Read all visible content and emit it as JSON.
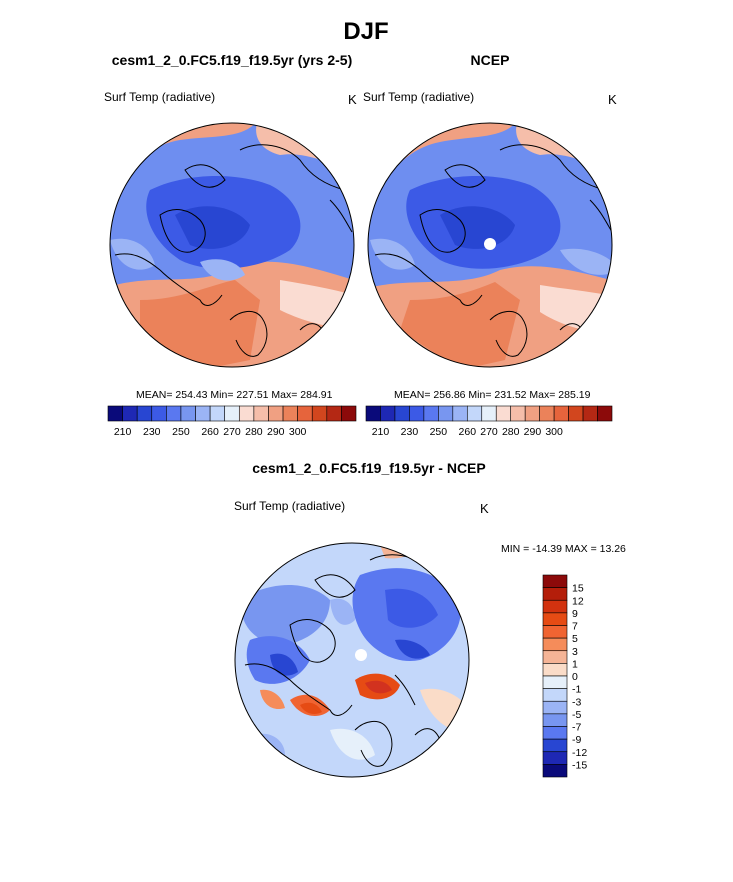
{
  "page_title": "DJF",
  "chart_data": [
    {
      "type": "heatmap",
      "title": "cesm1_2_0.FC5.f19_f19.5yr (yrs 2-5)",
      "variable": "Surf Temp (radiative)",
      "units": "K",
      "projection": "north-polar-stereographic",
      "stats_text": "MEAN= 254.43  Min= 227.51  Max= 284.91",
      "stats": {
        "mean": 254.43,
        "min": 227.51,
        "max": 284.91
      },
      "colorbar": {
        "orientation": "horizontal",
        "tick_labels": [
          "210",
          "230",
          "250",
          "260",
          "270",
          "280",
          "290",
          "300"
        ],
        "colors": [
          "#0a0a7a",
          "#1e28b4",
          "#2846d2",
          "#3c5ae6",
          "#5a78f0",
          "#7896f0",
          "#9bb4f5",
          "#c3d7fa",
          "#e6f0fa",
          "#fadcd2",
          "#f5beaa",
          "#f0a082",
          "#eb825a",
          "#e6643c",
          "#d2461e",
          "#b42814",
          "#8c0a0a"
        ]
      }
    },
    {
      "type": "heatmap",
      "title": "NCEP",
      "variable": "Surf Temp (radiative)",
      "units": "K",
      "projection": "north-polar-stereographic",
      "stats_text": "MEAN= 256.86  Min= 231.52  Max= 285.19",
      "stats": {
        "mean": 256.86,
        "min": 231.52,
        "max": 285.19
      },
      "colorbar": {
        "orientation": "horizontal",
        "tick_labels": [
          "210",
          "230",
          "250",
          "260",
          "270",
          "280",
          "290",
          "300"
        ],
        "colors": [
          "#0a0a7a",
          "#1e28b4",
          "#2846d2",
          "#3c5ae6",
          "#5a78f0",
          "#7896f0",
          "#9bb4f5",
          "#c3d7fa",
          "#e6f0fa",
          "#fadcd2",
          "#f5beaa",
          "#f0a082",
          "#eb825a",
          "#e6643c",
          "#d2461e",
          "#b42814",
          "#8c0a0a"
        ]
      }
    },
    {
      "type": "heatmap",
      "title": "cesm1_2_0.FC5.f19_f19.5yr - NCEP",
      "variable": "Surf Temp (radiative)",
      "units": "K",
      "projection": "north-polar-stereographic",
      "stats_text": "MIN = -14.39 MAX =  13.26",
      "stats": {
        "min": -14.39,
        "max": 13.26
      },
      "colorbar": {
        "orientation": "vertical",
        "tick_labels": [
          "15",
          "12",
          "9",
          "7",
          "5",
          "3",
          "1",
          "0",
          "-1",
          "-3",
          "-5",
          "-7",
          "-9",
          "-12",
          "-15"
        ],
        "colors": [
          "#8c0a0a",
          "#b41e0a",
          "#d2320f",
          "#e64b14",
          "#f06432",
          "#f58c5a",
          "#f5b496",
          "#fadcc8",
          "#e6f0fa",
          "#c3d7fa",
          "#9bb4f5",
          "#7896f0",
          "#5a78f0",
          "#2846d2",
          "#1e28b4",
          "#0a0a7a"
        ]
      }
    }
  ]
}
